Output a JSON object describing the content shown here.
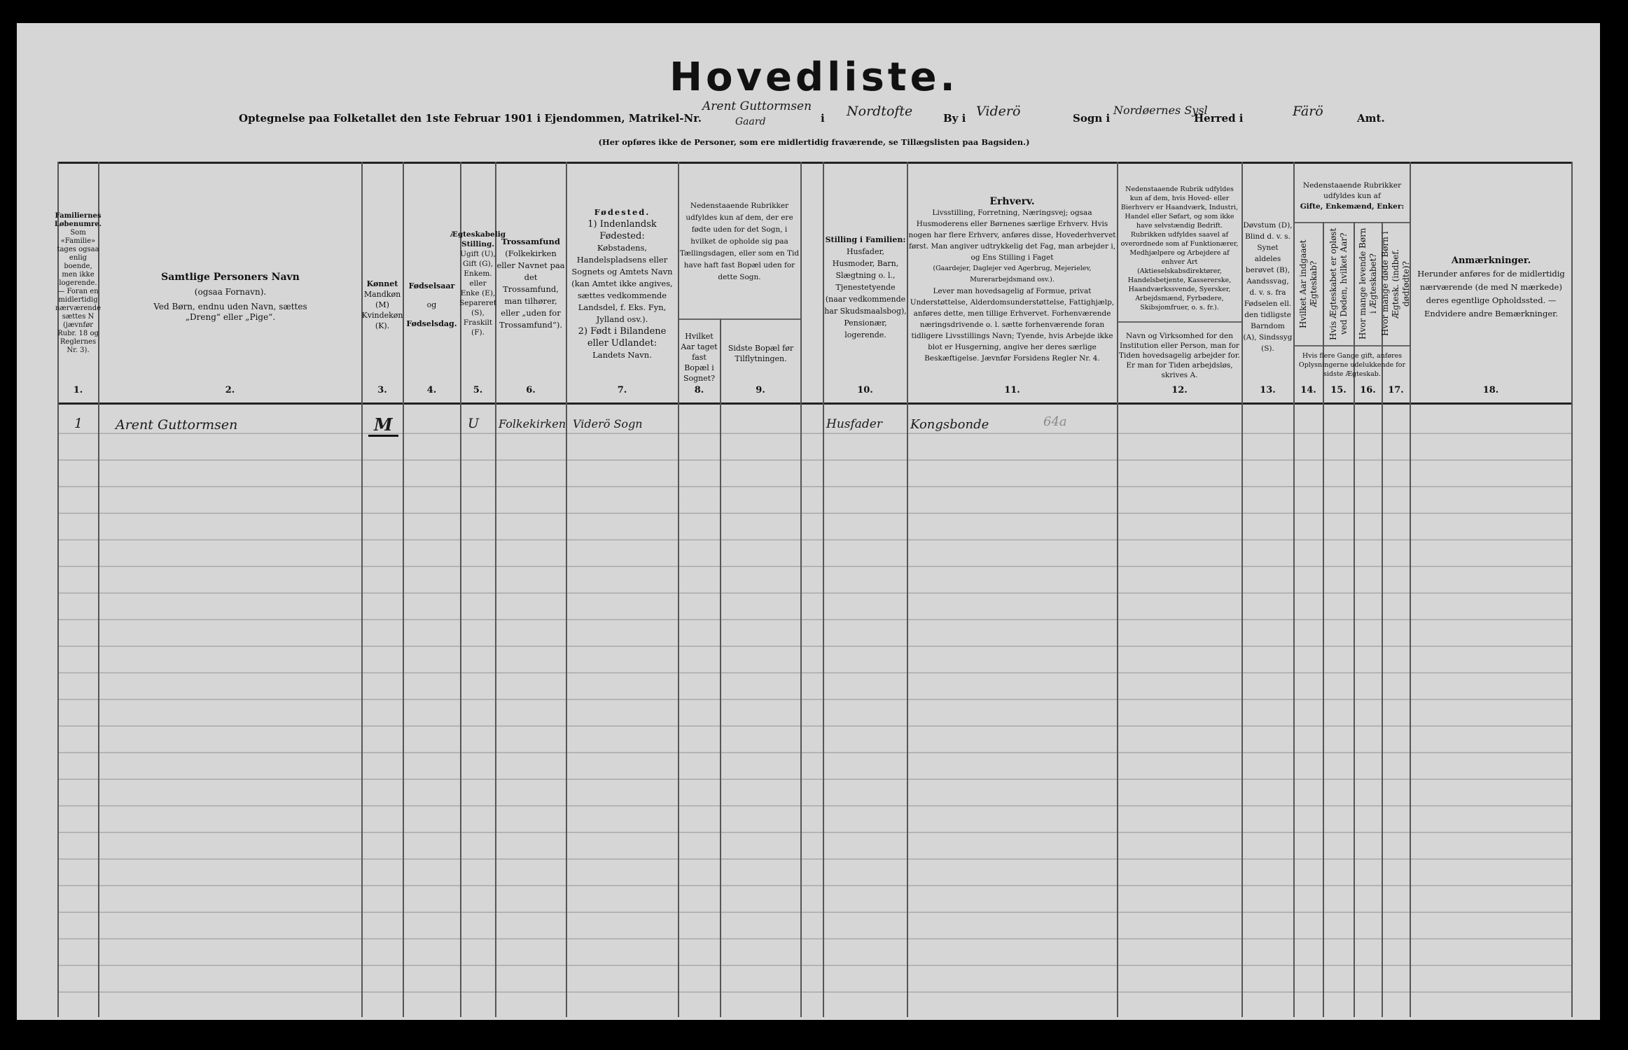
{
  "title": "Hovedliste.",
  "intro": {
    "prefix": "Optegnelse paa Folketallet den 1ste Februar 1901 i Ejendommen, Matrikel-Nr.",
    "matrikel_value": "Arent Guttormsen",
    "matrikel_value_line2": "Gaard",
    "label_i": "i",
    "place_value": "Nordtofte",
    "label_by": "By i",
    "by_value": "Viderö",
    "label_sogn": "Sogn i",
    "sogn_value": "Nordøernes Sysl",
    "label_herred": "Herred i",
    "herred_value": "Färö",
    "label_amt": "Amt."
  },
  "note": "(Her opføres ikke de Personer, som ere midlertidig fraværende, se Tillægslisten paa Bagsiden.)",
  "columns": [
    {
      "num": "1.",
      "head": "Familiernes Løbenumre.",
      "body": "Som «Familie» tages ogsaa enlig boende, men ikke logerende. — Foran en midlertidig nærværende sættes N (jævnfør Rubr. 18 og Reglernes Nr. 3)."
    },
    {
      "num": "2.",
      "head": "Samtlige Personers Navn",
      "body": "(ogsaa Fornavn).",
      "body2": "Ved Børn, endnu uden Navn, sættes „Dreng“ eller „Pige“."
    },
    {
      "num": "3.",
      "head": "Kønnet",
      "body": "Mandkøn (M) Kvindekøn (K)."
    },
    {
      "num": "4.",
      "head": "Fødselsaar",
      "body": "og",
      "body2": "Fødselsdag."
    },
    {
      "num": "5.",
      "head": "Ægteskabelig Stilling.",
      "body": "Ugift (U), Gift (G), Enkem. eller Enke (E), Separeret (S), Fraskilt (F)."
    },
    {
      "num": "6.",
      "head": "Trossamfund",
      "body": "(Folkekirken eller Navnet paa det Trossamfund, man tilhører, eller „uden for Trossamfund“)."
    },
    {
      "num": "7.",
      "head": "Fødested.",
      "body": "1) Indenlandsk Fødested:",
      "body2": "Købstadens, Handelspladsens eller Sognets og Amtets Navn (kan Amtet ikke angives, sættes vedkommende Landsdel, f. Eks. Fyn, Jylland osv.).",
      "body3": "2) Født i Bilandene eller Udlandet:",
      "body4": "Landets Navn."
    },
    {
      "num": "8.",
      "group": "Nedenstaaende Rubrikker udfyldes kun af dem, der ere fødte uden for det Sogn, i hvilket de opholde sig paa Tællingsdagen, eller som en Tid have haft fast Bopæl uden for dette Sogn.",
      "body": "Hvilket Aar taget fast Bopæl i Sognet?"
    },
    {
      "num": "9.",
      "body": "Sidste Bopæl før Tilflytningen."
    },
    {
      "num": "10.",
      "head": "Stilling i Familien:",
      "body": "Husfader, Husmoder, Barn, Slægtning o. l., Tjenestetyende (naar vedkommende har Skudsmaalsbog), Pensionær, logerende."
    },
    {
      "num": "11.",
      "head": "Erhverv.",
      "body": "Livsstilling, Forretning, Næringsvej; ogsaa Husmoderens eller Børnenes særlige Erhverv. Hvis nogen har flere Erhverv, anføres disse, Hovederhvervet først. Man angiver udtrykkelig det Fag, man arbejder i, og Ens Stilling i Faget",
      "body2": "(Gaardejer, Daglejer ved Agerbrug, Mejerielev, Murerarbejdsmand osv.).",
      "body3": "Lever man hovedsagelig af Formue, privat Understøttelse, Alderdomsunderstøttelse, Fattighjælp, anføres dette, men tillige Erhvervet. Forhenværende næringsdrivende o. l. sætte forhenværende foran tidligere Livsstillings Navn; Tyende, hvis Arbejde ikke blot er Husgerning, angive her deres særlige Beskæftigelse. Jævnfør Forsidens Regler Nr. 4."
    },
    {
      "num": "12.",
      "group": "Nedenstaaende Rubrik udfyldes kun af dem, hvis Hoved- eller Bierhverv er Haandværk, Industri, Handel eller Søfart, og som ikke have selvstændig Bedrift.",
      "group2": "Rubrikken udfyldes saavel af overordnede som af Funktionærer, Medhjælpere og Arbejdere af enhver Art (Aktieselskabsdirektører, Handelsbetjente, Kassererske, Haandværkssvende, Syersker, Arbejdsmænd, Fyrbødere, Skibsjomfruer, o. s. fr.).",
      "body": "Navn og Virksomhed for den Institution eller Person, man for Tiden hovedsagelig arbejder for.",
      "body2": "Er man for Tiden arbejdsløs, skrives A."
    },
    {
      "num": "13.",
      "body": "Døvstum (D), Blind d. v. s. Synet aldeles berøvet (B), Aandssvag, d. v. s. fra Fødselen ell. den tidligste Barndom (A), Sindssyg (S)."
    },
    {
      "num": "14.",
      "group": "Nedenstaaende Rubrikker udfyldes kun af",
      "group2": "Gifte, Enkemænd, Enker:",
      "body": "Hvilket Aar indgaaet Ægteskab?",
      "footer": "Hvis flere Gange gift, anføres Oplysningerne udelukkende for sidste Ægteskab."
    },
    {
      "num": "15.",
      "body": "Hvis Ægteskabet er opløst ved Døden, hvilket Aar?"
    },
    {
      "num": "16.",
      "body": "Hvor mange levende Børn i Ægteskabet?"
    },
    {
      "num": "17.",
      "body": "Hvor mange døde Børn i Ægtesk. (indbef. dødfødte)?"
    },
    {
      "num": "18.",
      "head": "Anmærkninger.",
      "body": "Herunder anføres for de midlertidig nærværende (de med N mærkede) deres egentlige Opholdssted. — Endvidere andre Bemærkninger."
    }
  ],
  "rows": [
    {
      "c1": "1",
      "c2": "Arent Guttormsen",
      "c3": "M",
      "c5": "U",
      "c6": "Folkekirken",
      "c7": "Viderö Sogn",
      "c10": "Husfader",
      "c11": "Kongsbonde",
      "pencil": "64a"
    }
  ]
}
